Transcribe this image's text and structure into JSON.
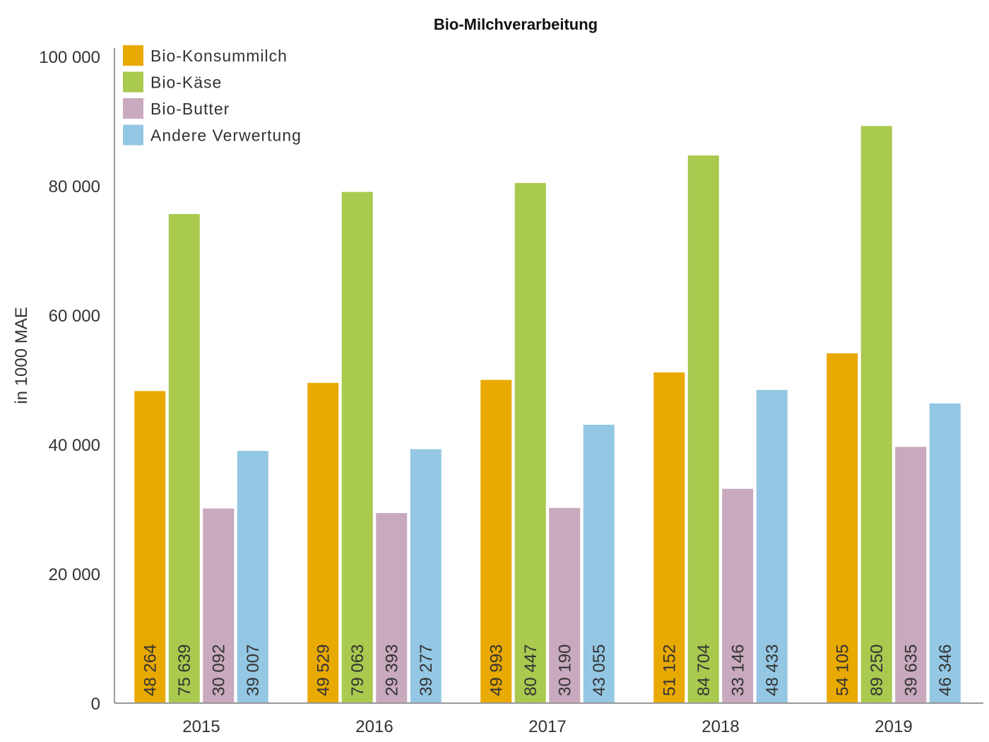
{
  "chart_data": {
    "type": "bar",
    "title": "Bio-Milchverarbeitung",
    "xlabel": "",
    "ylabel": "in 1000 MAE",
    "ylim": [
      0,
      100000
    ],
    "yticks": [
      0,
      20000,
      40000,
      60000,
      80000,
      100000
    ],
    "ytick_labels": [
      "0",
      "20 000",
      "40 000",
      "60 000",
      "80 000",
      "100 000"
    ],
    "categories": [
      "2015",
      "2016",
      "2017",
      "2018",
      "2019"
    ],
    "legend_placement": "top-left",
    "grid": false,
    "series": [
      {
        "name": "Bio-Konsummilch",
        "color": "#e8a900",
        "values": [
          48264,
          49529,
          49993,
          51152,
          54105
        ],
        "labels": [
          "48 264",
          "49 529",
          "49 993",
          "51 152",
          "54 105"
        ]
      },
      {
        "name": "Bio-Käse",
        "color": "#a9c94f",
        "values": [
          75639,
          79063,
          80447,
          84704,
          89250
        ],
        "labels": [
          "75 639",
          "79 063",
          "80 447",
          "84 704",
          "89 250"
        ]
      },
      {
        "name": "Bio-Butter",
        "color": "#c8a9bd",
        "values": [
          30092,
          29393,
          30190,
          33146,
          39635
        ],
        "labels": [
          "30 092",
          "29 393",
          "30 190",
          "33 146",
          "39 635"
        ]
      },
      {
        "name": "Andere Verwertung",
        "color": "#94c7e3",
        "values": [
          39007,
          39277,
          43055,
          48433,
          46346
        ],
        "labels": [
          "39 007",
          "39 277",
          "43 055",
          "48 433",
          "46 346"
        ]
      }
    ]
  }
}
